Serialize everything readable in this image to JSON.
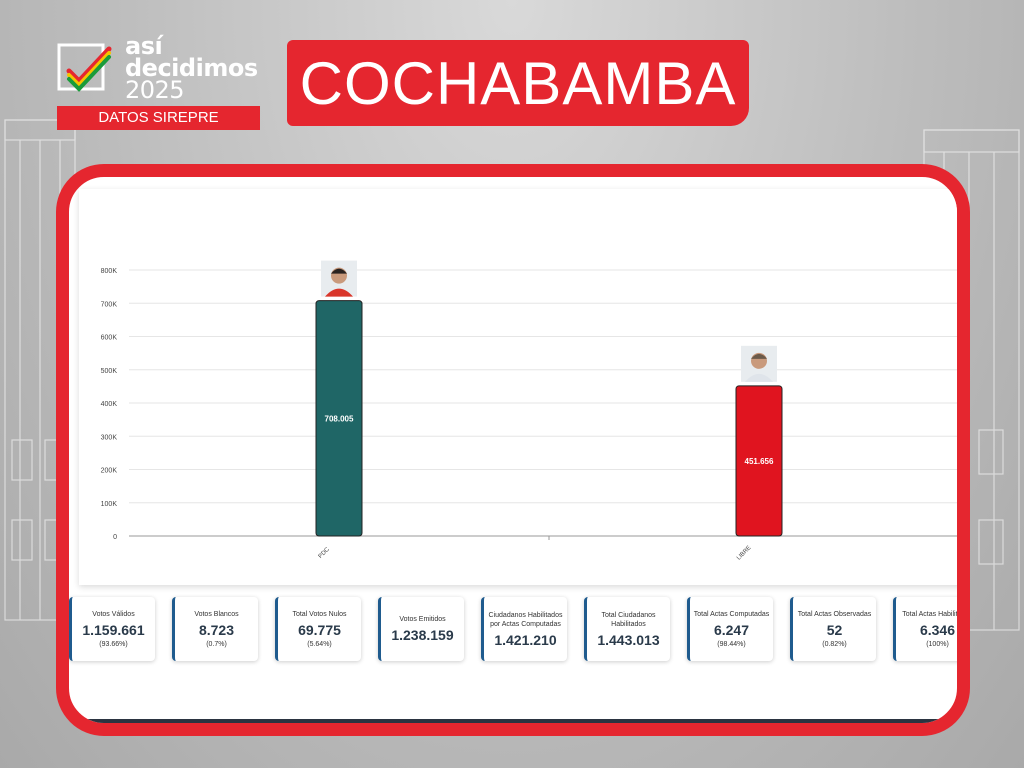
{
  "header": {
    "logo_line1": "así",
    "logo_line2": "decidimos",
    "logo_line3": "2025",
    "badge": "DATOS SIREPRE",
    "title": "COCHABAMBA"
  },
  "colors": {
    "accent": "#e5262f",
    "bar_pdc": "#1f6666",
    "bar_libre": "#e0141f",
    "stat_border": "#1f5b8e"
  },
  "chart_data": {
    "type": "bar",
    "categories": [
      "PDC",
      "LIBRE"
    ],
    "values": [
      708005,
      451656
    ],
    "value_labels": [
      "708.005",
      "451.656"
    ],
    "colors": [
      "#1f6666",
      "#e0141f"
    ],
    "y_ticks": [
      "0",
      "100K",
      "200K",
      "300K",
      "400K",
      "500K",
      "600K",
      "700K",
      "800K"
    ],
    "ylim": [
      0,
      800000
    ],
    "grid": true,
    "title": "",
    "xlabel": "",
    "ylabel": ""
  },
  "stats": [
    {
      "label": "Votos Válidos",
      "value": "1.159.661",
      "pct": "(93.66%)"
    },
    {
      "label": "Votos Blancos",
      "value": "8.723",
      "pct": "(0.7%)"
    },
    {
      "label": "Total Votos Nulos",
      "value": "69.775",
      "pct": "(5.64%)"
    },
    {
      "label": "Votos Emitidos",
      "value": "1.238.159",
      "pct": ""
    },
    {
      "label": "Ciudadanos Habilitados por Actas Computadas",
      "value": "1.421.210",
      "pct": ""
    },
    {
      "label": "Total Ciudadanos Habilitados",
      "value": "1.443.013",
      "pct": ""
    },
    {
      "label": "Total Actas Computadas",
      "value": "6.247",
      "pct": "(98.44%)"
    },
    {
      "label": "Total Actas Observadas",
      "value": "52",
      "pct": "(0.82%)"
    },
    {
      "label": "Total Actas Habilitadas",
      "value": "6.346",
      "pct": "(100%)"
    }
  ]
}
